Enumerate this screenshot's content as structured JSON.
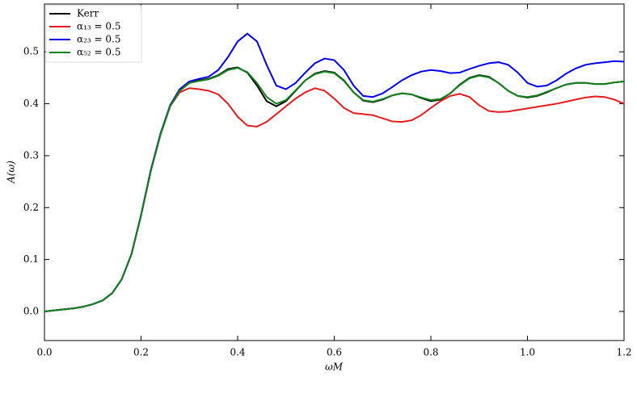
{
  "chart_data": {
    "type": "line",
    "x_label": "ωM",
    "y_label": "A(ω)",
    "x": [
      0,
      0.02,
      0.04,
      0.06,
      0.08,
      0.1,
      0.12,
      0.14,
      0.16,
      0.18,
      0.2,
      0.22,
      0.24,
      0.26,
      0.28,
      0.3,
      0.32,
      0.34,
      0.36,
      0.38,
      0.4,
      0.42,
      0.44,
      0.46,
      0.48,
      0.5,
      0.52,
      0.54,
      0.56,
      0.58,
      0.6,
      0.62,
      0.64,
      0.66,
      0.68,
      0.7,
      0.72,
      0.74,
      0.76,
      0.78,
      0.8,
      0.82,
      0.84,
      0.86,
      0.88,
      0.9,
      0.92,
      0.94,
      0.96,
      0.98,
      1.0,
      1.02,
      1.04,
      1.06,
      1.08,
      1.1,
      1.12,
      1.14,
      1.16,
      1.18,
      1.2
    ],
    "series": [
      {
        "name": "Kerr",
        "color": "#000000",
        "values": [
          0,
          0.002,
          0.004,
          0.006,
          0.009,
          0.014,
          0.021,
          0.035,
          0.062,
          0.11,
          0.185,
          0.27,
          0.34,
          0.395,
          0.425,
          0.44,
          0.445,
          0.448,
          0.455,
          0.467,
          0.47,
          0.46,
          0.435,
          0.405,
          0.395,
          0.405,
          0.425,
          0.445,
          0.458,
          0.463,
          0.46,
          0.445,
          0.422,
          0.406,
          0.403,
          0.408,
          0.416,
          0.42,
          0.418,
          0.411,
          0.405,
          0.408,
          0.42,
          0.437,
          0.45,
          0.455,
          0.452,
          0.44,
          0.425,
          0.415,
          0.412,
          0.415,
          0.422,
          0.43,
          0.437,
          0.44,
          0.44,
          0.438,
          0.438,
          0.441,
          0.443
        ]
      },
      {
        "name": "α₁₃ = 0.5",
        "color": "#e41a1c",
        "values": [
          0,
          0.002,
          0.004,
          0.006,
          0.009,
          0.014,
          0.021,
          0.035,
          0.062,
          0.11,
          0.185,
          0.27,
          0.34,
          0.395,
          0.422,
          0.43,
          0.428,
          0.425,
          0.418,
          0.4,
          0.375,
          0.358,
          0.356,
          0.365,
          0.38,
          0.395,
          0.41,
          0.422,
          0.43,
          0.425,
          0.41,
          0.392,
          0.382,
          0.38,
          0.378,
          0.372,
          0.366,
          0.365,
          0.368,
          0.378,
          0.392,
          0.405,
          0.415,
          0.419,
          0.413,
          0.397,
          0.386,
          0.384,
          0.385,
          0.388,
          0.391,
          0.394,
          0.397,
          0.4,
          0.404,
          0.408,
          0.412,
          0.414,
          0.413,
          0.408,
          0.4
        ]
      },
      {
        "name": "α₂₃ = 0.5",
        "color": "#0000ee",
        "values": [
          0,
          0.002,
          0.004,
          0.006,
          0.009,
          0.014,
          0.021,
          0.035,
          0.062,
          0.11,
          0.186,
          0.272,
          0.342,
          0.397,
          0.428,
          0.443,
          0.448,
          0.452,
          0.465,
          0.49,
          0.52,
          0.535,
          0.52,
          0.475,
          0.435,
          0.428,
          0.44,
          0.46,
          0.478,
          0.487,
          0.484,
          0.465,
          0.435,
          0.415,
          0.413,
          0.42,
          0.432,
          0.445,
          0.455,
          0.462,
          0.465,
          0.463,
          0.459,
          0.46,
          0.467,
          0.473,
          0.478,
          0.48,
          0.475,
          0.46,
          0.44,
          0.433,
          0.435,
          0.445,
          0.458,
          0.468,
          0.475,
          0.478,
          0.48,
          0.482,
          0.481
        ]
      },
      {
        "name": "α₅₂ = 0.5",
        "color": "#11821b",
        "values": [
          0,
          0.002,
          0.004,
          0.006,
          0.009,
          0.014,
          0.021,
          0.035,
          0.062,
          0.11,
          0.185,
          0.27,
          0.34,
          0.395,
          0.425,
          0.44,
          0.444,
          0.447,
          0.454,
          0.465,
          0.469,
          0.461,
          0.44,
          0.413,
          0.4,
          0.407,
          0.426,
          0.445,
          0.457,
          0.462,
          0.459,
          0.444,
          0.422,
          0.407,
          0.404,
          0.409,
          0.416,
          0.42,
          0.418,
          0.412,
          0.407,
          0.409,
          0.42,
          0.436,
          0.449,
          0.454,
          0.451,
          0.44,
          0.425,
          0.415,
          0.413,
          0.416,
          0.423,
          0.43,
          0.437,
          0.44,
          0.44,
          0.438,
          0.438,
          0.441,
          0.443
        ]
      }
    ],
    "xlim": [
      0,
      1.2
    ],
    "ylim": [
      -0.056,
      0.592
    ],
    "xticks": [
      {
        "value": 0,
        "label": "0.0"
      },
      0.2,
      0.4,
      0.6,
      0.8,
      {
        "value": 1,
        "label": "1.0"
      },
      1.2
    ],
    "yticks": [
      {
        "value": 0,
        "label": "0.0"
      },
      0.1,
      0.2,
      0.3,
      0.4,
      0.5
    ],
    "legend": "upper left"
  }
}
